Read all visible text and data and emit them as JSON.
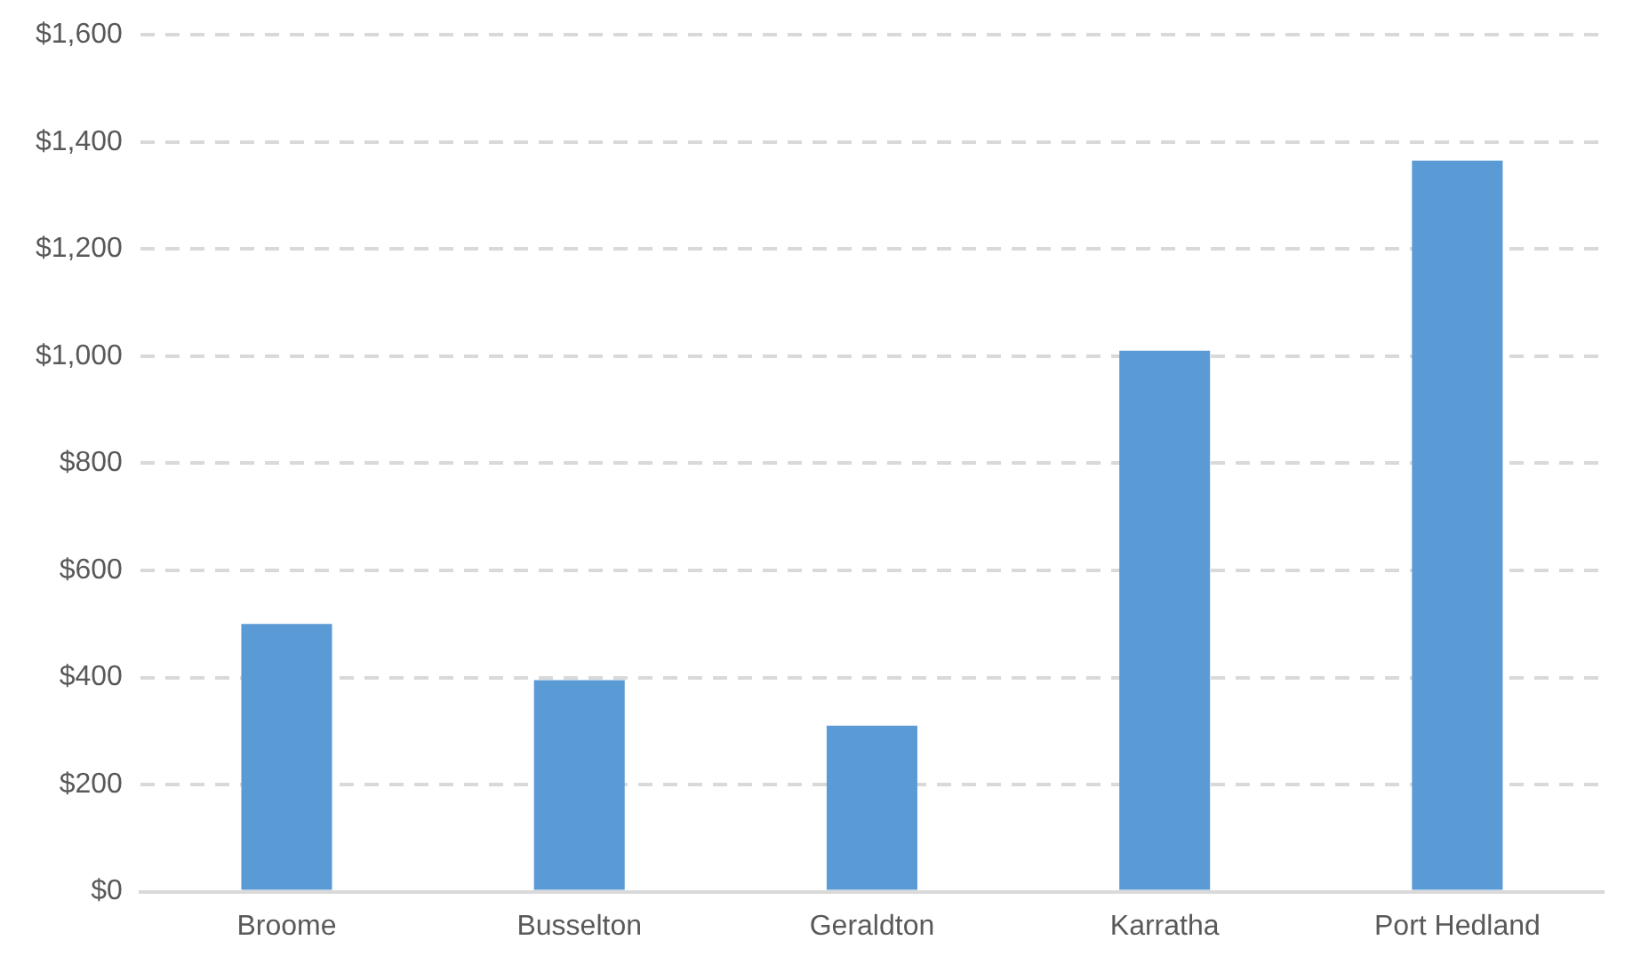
{
  "chart_data": {
    "type": "bar",
    "categories": [
      "Broome",
      "Busselton",
      "Geraldton",
      "Karratha",
      "Port Hedland"
    ],
    "values": [
      500,
      395,
      310,
      1010,
      1365
    ],
    "color": "#5b9bd5",
    "ylim": [
      0,
      1600
    ],
    "yticks": [
      {
        "value": 0,
        "label": "$0"
      },
      {
        "value": 200,
        "label": "$200"
      },
      {
        "value": 400,
        "label": "$400"
      },
      {
        "value": 600,
        "label": "$600"
      },
      {
        "value": 800,
        "label": "$800"
      },
      {
        "value": 1000,
        "label": "$1,000"
      },
      {
        "value": 1200,
        "label": "$1,200"
      },
      {
        "value": 1400,
        "label": "$1,400"
      },
      {
        "value": 1600,
        "label": "$1,600"
      }
    ],
    "grid": "y"
  }
}
